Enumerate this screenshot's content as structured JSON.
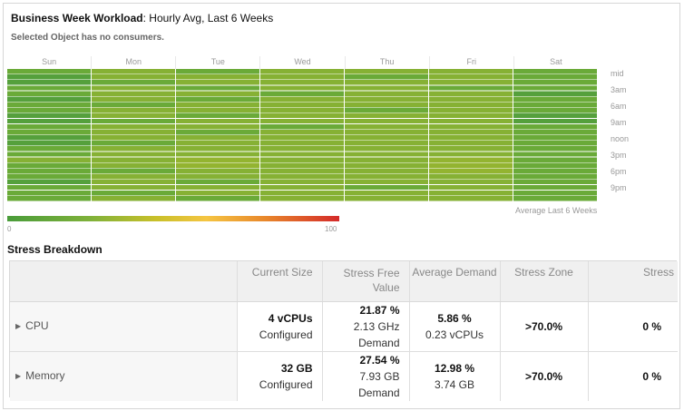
{
  "header": {
    "title_bold": "Business Week Workload",
    "title_rest": ": Hourly Avg, Last 6 Weeks",
    "subtitle": "Selected Object has no consumers."
  },
  "heatmap": {
    "days": [
      "Sun",
      "Mon",
      "Tue",
      "Wed",
      "Thu",
      "Fri",
      "Sat"
    ],
    "hour_labels": [
      "mid",
      "3am",
      "6am",
      "9am",
      "noon",
      "3pm",
      "6pm",
      "9pm"
    ],
    "average_label": "Average Last 6 Weeks",
    "colors": {
      "green_dark": "#55a03c",
      "green": "#6aaa38",
      "yellow_green": "#86b134",
      "olive": "#93b430"
    }
  },
  "legend": {
    "min_label": "0",
    "max_label": "100"
  },
  "stress": {
    "section_title": "Stress Breakdown",
    "columns": [
      "",
      "Current Size",
      "Stress Free Value",
      "Average Demand",
      "Stress Zone",
      "Stress"
    ],
    "rows": [
      {
        "name": "CPU",
        "size_value": "4 vCPUs",
        "size_note": "Configured",
        "free_pct": "21.87 %",
        "free_amount": "2.13 GHz",
        "free_note": "Demand",
        "demand_pct": "5.86 %",
        "demand_amount": "0.23 vCPUs",
        "zone": ">70.0%",
        "stress": "0 %"
      },
      {
        "name": "Memory",
        "size_value": "32 GB",
        "size_note": "Configured",
        "free_pct": "27.54 %",
        "free_amount": "7.93 GB",
        "free_note": "Demand",
        "demand_pct": "12.98 %",
        "demand_amount": "3.74 GB",
        "zone": ">70.0%",
        "stress": "0 %"
      }
    ]
  }
}
